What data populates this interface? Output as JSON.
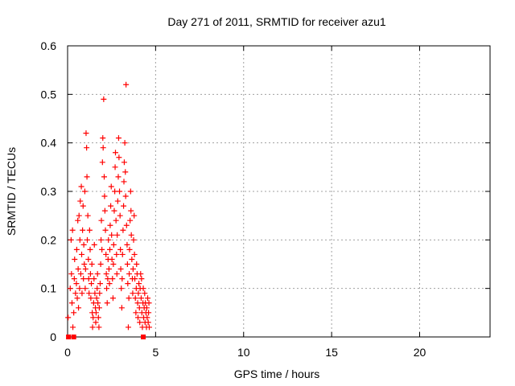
{
  "chart_data": {
    "type": "scatter",
    "title": "Day 271 of 2011, SRMTID for receiver azu1",
    "xlabel": "GPS time / hours",
    "ylabel": "SRMTID / TECUs",
    "xlim": [
      0,
      24
    ],
    "ylim": [
      0,
      0.6
    ],
    "xticks": [
      0,
      5,
      10,
      15,
      20
    ],
    "xtick_labels": [
      "0",
      "5",
      "10",
      "15",
      "20"
    ],
    "yticks": [
      0,
      0.1,
      0.2,
      0.3,
      0.4,
      0.5,
      0.6
    ],
    "ytick_labels": [
      "0",
      "0.1",
      "0.2",
      "0.3",
      "0.4",
      "0.5",
      "0.6"
    ],
    "grid": true,
    "legend": "none",
    "marker": "plus",
    "color": "#ff0000",
    "series": [
      {
        "points": [
          [
            0.03,
            0.04
          ],
          [
            0.15,
            0.1
          ],
          [
            0.2,
            0.2
          ],
          [
            0.22,
            0.13
          ],
          [
            0.25,
            0.07
          ],
          [
            0.28,
            0.22
          ],
          [
            0.3,
            0.02
          ],
          [
            0.35,
            0.05
          ],
          [
            0.38,
            0.12
          ],
          [
            0.4,
            0.16
          ],
          [
            0.45,
            0.09
          ],
          [
            0.5,
            0.11
          ],
          [
            0.52,
            0.18
          ],
          [
            0.55,
            0.08
          ],
          [
            0.58,
            0.24
          ],
          [
            0.6,
            0.14
          ],
          [
            0.62,
            0.06
          ],
          [
            0.65,
            0.25
          ],
          [
            0.68,
            0.1
          ],
          [
            0.7,
            0.2
          ],
          [
            0.72,
            0.28
          ],
          [
            0.75,
            0.13
          ],
          [
            0.78,
            0.31
          ],
          [
            0.8,
            0.17
          ],
          [
            0.82,
            0.09
          ],
          [
            0.85,
            0.22
          ],
          [
            0.88,
            0.27
          ],
          [
            0.9,
            0.12
          ],
          [
            0.92,
            0.19
          ],
          [
            0.95,
            0.15
          ],
          [
            0.98,
            0.3
          ],
          [
            1.0,
            0.1
          ],
          [
            1.02,
            0.14
          ],
          [
            1.05,
            0.42
          ],
          [
            1.08,
            0.39
          ],
          [
            1.1,
            0.33
          ],
          [
            1.12,
            0.2
          ],
          [
            1.15,
            0.25
          ],
          [
            1.18,
            0.16
          ],
          [
            1.2,
            0.12
          ],
          [
            1.22,
            0.09
          ],
          [
            1.25,
            0.22
          ],
          [
            1.28,
            0.18
          ],
          [
            1.3,
            0.13
          ],
          [
            1.32,
            0.08
          ],
          [
            1.35,
            0.11
          ],
          [
            1.38,
            0.15
          ],
          [
            1.4,
            0.05
          ],
          [
            1.42,
            0.02
          ],
          [
            1.45,
            0.04
          ],
          [
            1.48,
            0.07
          ],
          [
            1.5,
            0.12
          ],
          [
            1.52,
            0.19
          ],
          [
            1.55,
            0.09
          ],
          [
            1.58,
            0.06
          ],
          [
            1.6,
            0.03
          ],
          [
            1.62,
            0.05
          ],
          [
            1.65,
            0.08
          ],
          [
            1.68,
            0.1
          ],
          [
            1.7,
            0.13
          ],
          [
            1.72,
            0.07
          ],
          [
            1.75,
            0.04
          ],
          [
            1.78,
            0.02
          ],
          [
            1.8,
            0.06
          ],
          [
            1.82,
            0.09
          ],
          [
            1.85,
            0.11
          ],
          [
            1.88,
            0.15
          ],
          [
            1.9,
            0.2
          ],
          [
            1.92,
            0.24
          ],
          [
            1.95,
            0.18
          ],
          [
            1.98,
            0.36
          ],
          [
            2.0,
            0.41
          ],
          [
            2.02,
            0.39
          ],
          [
            2.05,
            0.49
          ],
          [
            2.08,
            0.33
          ],
          [
            2.1,
            0.29
          ],
          [
            2.12,
            0.26
          ],
          [
            2.15,
            0.22
          ],
          [
            2.18,
            0.17
          ],
          [
            2.2,
            0.13
          ],
          [
            2.22,
            0.1
          ],
          [
            2.25,
            0.07
          ],
          [
            2.28,
            0.12
          ],
          [
            2.3,
            0.16
          ],
          [
            2.32,
            0.2
          ],
          [
            2.35,
            0.14
          ],
          [
            2.38,
            0.11
          ],
          [
            2.4,
            0.18
          ],
          [
            2.42,
            0.23
          ],
          [
            2.45,
            0.27
          ],
          [
            2.48,
            0.31
          ],
          [
            2.5,
            0.21
          ],
          [
            2.52,
            0.16
          ],
          [
            2.55,
            0.12
          ],
          [
            2.58,
            0.08
          ],
          [
            2.6,
            0.15
          ],
          [
            2.62,
            0.19
          ],
          [
            2.65,
            0.26
          ],
          [
            2.68,
            0.3
          ],
          [
            2.7,
            0.35
          ],
          [
            2.72,
            0.38
          ],
          [
            2.75,
            0.24
          ],
          [
            2.78,
            0.17
          ],
          [
            2.8,
            0.13
          ],
          [
            2.82,
            0.21
          ],
          [
            2.85,
            0.28
          ],
          [
            2.88,
            0.33
          ],
          [
            2.9,
            0.41
          ],
          [
            2.92,
            0.37
          ],
          [
            2.95,
            0.3
          ],
          [
            2.98,
            0.25
          ],
          [
            3.0,
            0.18
          ],
          [
            3.02,
            0.14
          ],
          [
            3.05,
            0.1
          ],
          [
            3.08,
            0.06
          ],
          [
            3.1,
            0.12
          ],
          [
            3.12,
            0.17
          ],
          [
            3.15,
            0.22
          ],
          [
            3.18,
            0.27
          ],
          [
            3.2,
            0.32
          ],
          [
            3.22,
            0.36
          ],
          [
            3.25,
            0.4
          ],
          [
            3.28,
            0.34
          ],
          [
            3.3,
            0.29
          ],
          [
            3.32,
            0.52
          ],
          [
            3.35,
            0.23
          ],
          [
            3.38,
            0.19
          ],
          [
            3.4,
            0.15
          ],
          [
            3.42,
            0.11
          ],
          [
            3.45,
            0.02
          ],
          [
            3.48,
            0.08
          ],
          [
            3.5,
            0.13
          ],
          [
            3.52,
            0.18
          ],
          [
            3.55,
            0.24
          ],
          [
            3.58,
            0.3
          ],
          [
            3.6,
            0.26
          ],
          [
            3.62,
            0.21
          ],
          [
            3.65,
            0.16
          ],
          [
            3.68,
            0.12
          ],
          [
            3.7,
            0.09
          ],
          [
            3.72,
            0.14
          ],
          [
            3.75,
            0.2
          ],
          [
            3.78,
            0.25
          ],
          [
            3.8,
            0.17
          ],
          [
            3.82,
            0.12
          ],
          [
            3.85,
            0.08
          ],
          [
            3.88,
            0.05
          ],
          [
            3.9,
            0.1
          ],
          [
            3.92,
            0.15
          ],
          [
            3.95,
            0.13
          ],
          [
            3.98,
            0.07
          ],
          [
            4.0,
            0.04
          ],
          [
            4.02,
            0.09
          ],
          [
            4.05,
            0.11
          ],
          [
            4.08,
            0.06
          ],
          [
            4.1,
            0.03
          ],
          [
            4.12,
            0.1
          ],
          [
            4.15,
            0.13
          ],
          [
            4.18,
            0.08
          ],
          [
            4.2,
            0.12
          ],
          [
            4.22,
            0.05
          ],
          [
            4.25,
            0.02
          ],
          [
            4.28,
            0.07
          ],
          [
            4.3,
            0.1
          ],
          [
            4.32,
            0.04
          ],
          [
            4.35,
            0.06
          ],
          [
            4.38,
            0.09
          ],
          [
            4.4,
            0.03
          ],
          [
            4.42,
            0.07
          ],
          [
            4.45,
            0.05
          ],
          [
            4.48,
            0.02
          ],
          [
            4.5,
            0.06
          ],
          [
            4.52,
            0.04
          ],
          [
            4.55,
            0.08
          ],
          [
            4.58,
            0.03
          ],
          [
            4.6,
            0.05
          ],
          [
            4.62,
            0.07
          ],
          [
            4.64,
            0.02
          ]
        ]
      }
    ],
    "zero_markers": [
      0.05,
      0.35,
      4.3
    ]
  }
}
